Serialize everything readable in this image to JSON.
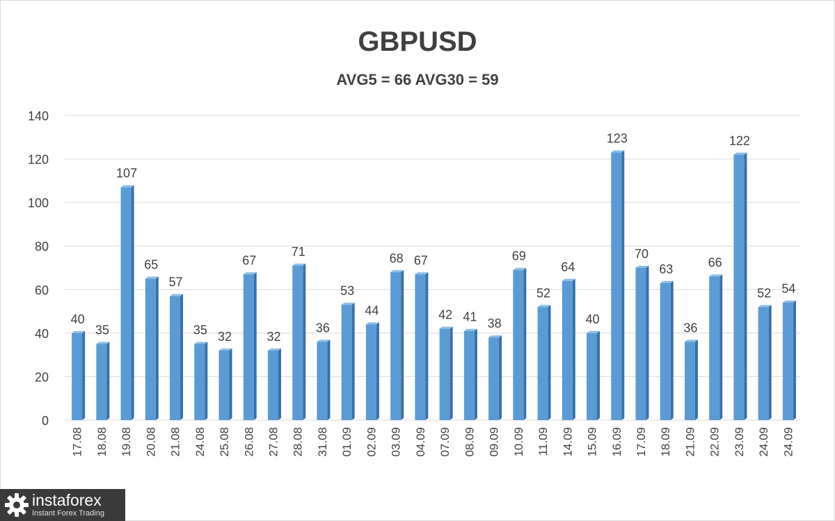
{
  "title": "GBPUSD",
  "subtitle": "AVG5 = 66 AVG30 = 59",
  "logo": {
    "name": "instaforex",
    "tagline": "Instant Forex Trading"
  },
  "colors": {
    "bar_front": "#5b9bd5",
    "bar_side": "#3a6fa8",
    "bar_top": "#8fbfe8",
    "grid": "#d9d9d9",
    "text": "#404040"
  },
  "chart_data": {
    "type": "bar",
    "title": "GBPUSD",
    "subtitle": "AVG5 = 66 AVG30 = 59",
    "xlabel": "",
    "ylabel": "",
    "ylim": [
      0,
      140
    ],
    "yticks": [
      0,
      20,
      40,
      60,
      80,
      100,
      120,
      140
    ],
    "grid": true,
    "legend": "none",
    "categories": [
      "17.08",
      "18.08",
      "19.08",
      "20.08",
      "21.08",
      "24.08",
      "25.08",
      "26.08",
      "27.08",
      "28.08",
      "31.08",
      "01.09",
      "02.09",
      "03.09",
      "04.09",
      "07.09",
      "08.09",
      "09.09",
      "10.09",
      "11.09",
      "14.09",
      "15.09",
      "16.09",
      "17.09",
      "18.09",
      "21.09",
      "22.09",
      "23.09",
      "24.09",
      "24.09"
    ],
    "values": [
      40,
      35,
      107,
      65,
      57,
      35,
      32,
      67,
      32,
      71,
      36,
      53,
      44,
      68,
      67,
      42,
      41,
      38,
      69,
      52,
      64,
      40,
      123,
      70,
      63,
      36,
      66,
      122,
      52,
      54
    ]
  }
}
